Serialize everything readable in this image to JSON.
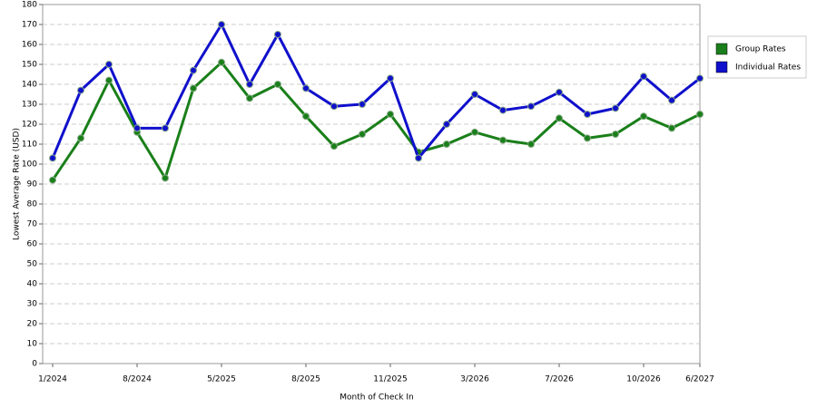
{
  "chart_data": {
    "type": "line",
    "x_label": "Month of Check In",
    "y_label": "Lowest Average Rate (USD)",
    "categories": [
      "1/2024",
      null,
      null,
      "8/2024",
      null,
      null,
      "5/2025",
      null,
      null,
      "8/2025",
      null,
      null,
      "11/2025",
      null,
      null,
      "3/2026",
      null,
      null,
      "7/2026",
      null,
      null,
      "10/2026",
      null,
      "6/2027"
    ],
    "series": [
      {
        "name": "Group Rates",
        "color": "#1a7f1a",
        "values": [
          92,
          113,
          142,
          116,
          93,
          138,
          151,
          133,
          140,
          124,
          109,
          115,
          125,
          106,
          110,
          116,
          112,
          110,
          123,
          113,
          115,
          124,
          118,
          125
        ]
      },
      {
        "name": "Individual Rates",
        "color": "#1010cc",
        "values": [
          103,
          137,
          150,
          118,
          118,
          147,
          170,
          140,
          165,
          138,
          129,
          130,
          143,
          103,
          120,
          135,
          127,
          129,
          136,
          125,
          128,
          144,
          132,
          143
        ]
      }
    ],
    "ylim": [
      0,
      180
    ],
    "yticks": [
      0,
      10,
      20,
      30,
      40,
      50,
      60,
      70,
      80,
      90,
      100,
      110,
      120,
      130,
      140,
      150,
      160,
      170,
      180
    ],
    "grid": true,
    "legend": "right"
  }
}
